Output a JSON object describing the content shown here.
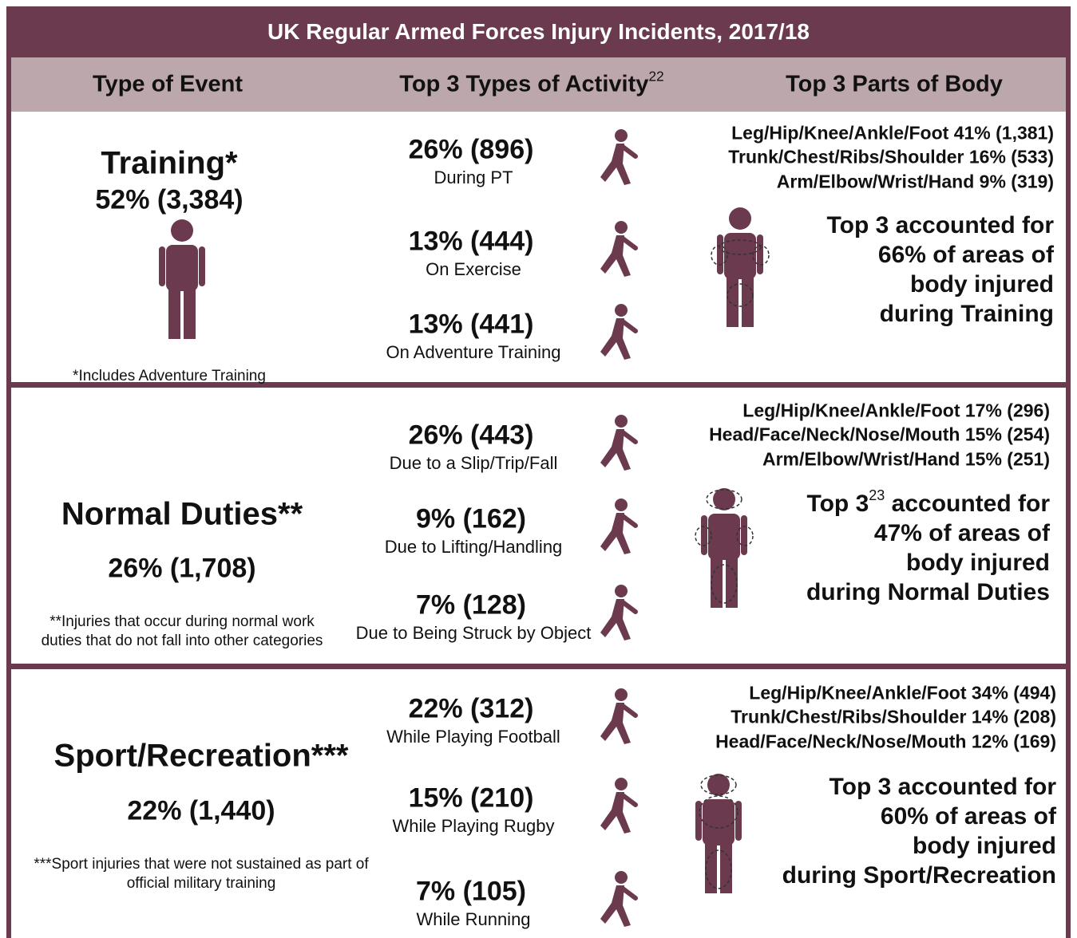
{
  "title": "UK Regular Armed Forces Injury Incidents, 2017/18",
  "headers": [
    {
      "text": "Type of Event"
    },
    {
      "text": "Top 3 Types of Activity",
      "sup": "22"
    },
    {
      "text": "Top 3 Parts of Body"
    }
  ],
  "sections": [
    {
      "event": "Training*",
      "share": "52% (3,384)",
      "note": "*Includes Adventure Training",
      "activities": [
        {
          "stat": "26% (896)",
          "label": "During PT"
        },
        {
          "stat": "13% (444)",
          "label": "On Exercise"
        },
        {
          "stat": "13% (441)",
          "label": "On Adventure Training"
        }
      ],
      "body_parts": [
        "Leg/Hip/Knee/Ankle/Foot 41% (1,381)",
        "Trunk/Chest/Ribs/Shoulder 16% (533)",
        "Arm/Elbow/Wrist/Hand 9% (319)"
      ],
      "summary_head": "Top 3",
      "summary_tail": "accounted for",
      "summary_lines": [
        "66% of areas of",
        "body injured",
        "during Training"
      ]
    },
    {
      "event": "Normal Duties**",
      "share": "26% (1,708)",
      "note": "**Injuries that occur during normal work duties that do not fall into other categories",
      "activities": [
        {
          "stat": "26% (443)",
          "label": "Due to a Slip/Trip/Fall"
        },
        {
          "stat": "9% (162)",
          "label": "Due to Lifting/Handling"
        },
        {
          "stat": "7% (128)",
          "label": "Due to Being Struck by Object"
        }
      ],
      "body_parts": [
        "Leg/Hip/Knee/Ankle/Foot 17% (296)",
        "Head/Face/Neck/Nose/Mouth 15% (254)",
        "Arm/Elbow/Wrist/Hand 15% (251)"
      ],
      "summary_head": "Top 3",
      "summary_sup": "23",
      "summary_tail": "accounted for",
      "summary_lines": [
        "47% of areas of",
        "body injured",
        "during Normal Duties"
      ]
    },
    {
      "event": "Sport/Recreation***",
      "share": "22% (1,440)",
      "note": "***Sport injuries that were not sustained as part of official military training",
      "activities": [
        {
          "stat": "22% (312)",
          "label": "While Playing Football"
        },
        {
          "stat": "15% (210)",
          "label": "While Playing Rugby"
        },
        {
          "stat": "7% (105)",
          "label": "While Running"
        }
      ],
      "body_parts": [
        "Leg/Hip/Knee/Ankle/Foot 34% (494)",
        "Trunk/Chest/Ribs/Shoulder 14% (208)",
        "Head/Face/Neck/Nose/Mouth 12% (169)"
      ],
      "summary_head": "Top 3",
      "summary_tail": "accounted for",
      "summary_lines": [
        "60% of areas of",
        "body injured",
        "during Sport/Recreation"
      ]
    }
  ]
}
